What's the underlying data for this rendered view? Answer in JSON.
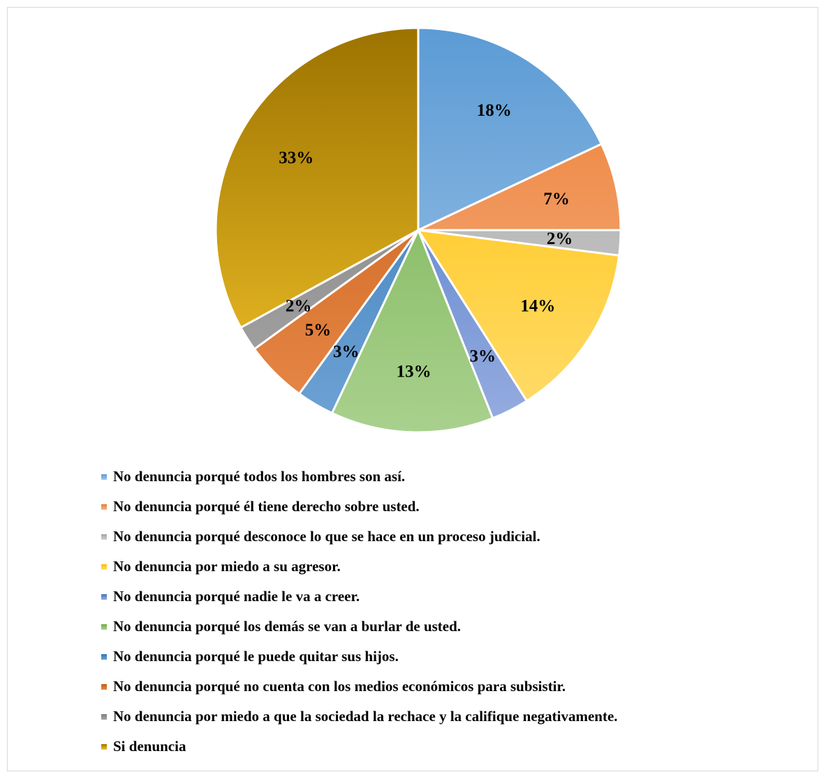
{
  "chart_data": {
    "type": "pie",
    "title": "",
    "slices": [
      {
        "label": "No denuncia porqué todos los hombres son así.",
        "value": 18,
        "value_label": "18%",
        "color": "#5b9bd5",
        "color_light": "#a3c6e8"
      },
      {
        "label": "No denuncia porqué él tiene derecho sobre usted.",
        "value": 7,
        "value_label": "7%",
        "color": "#ed7d31",
        "color_light": "#f5b48c"
      },
      {
        "label": "No denuncia porqué desconoce lo que se hace en un proceso judicial.",
        "value": 2,
        "value_label": "2%",
        "color": "#a5a5a5",
        "color_light": "#d0d0d0"
      },
      {
        "label": "No denuncia por miedo a su agresor.",
        "value": 14,
        "value_label": "14%",
        "color": "#ffc000",
        "color_light": "#ffdc6e"
      },
      {
        "label": "No denuncia porqué nadie le va a creer.",
        "value": 3,
        "value_label": "3%",
        "color": "#4472c4",
        "color_light": "#97ade0"
      },
      {
        "label": "No denuncia porqué los demás se van a burlar de usted.",
        "value": 13,
        "value_label": "13%",
        "color": "#70ad47",
        "color_light": "#a9d18e"
      },
      {
        "label": "No denuncia porqué le puede quitar sus hijos.",
        "value": 3,
        "value_label": "3%",
        "color": "#2e75b6",
        "color_light": "#6fa3d5"
      },
      {
        "label": "No denuncia porqué no cuenta con los medios económicos para subsistir.",
        "value": 5,
        "value_label": "5%",
        "color": "#c55a11",
        "color_light": "#e8894a"
      },
      {
        "label": "No denuncia por miedo a que la sociedad la rechace y la califique negativamente.",
        "value": 2,
        "value_label": "2%",
        "color": "#7f7f7f",
        "color_light": "#a6a6a6"
      },
      {
        "label": "Si denuncia",
        "value": 33,
        "value_label": "33%",
        "color": "#9c7300",
        "color_light": "#f5c42a"
      }
    ],
    "legend_position": "bottom"
  }
}
